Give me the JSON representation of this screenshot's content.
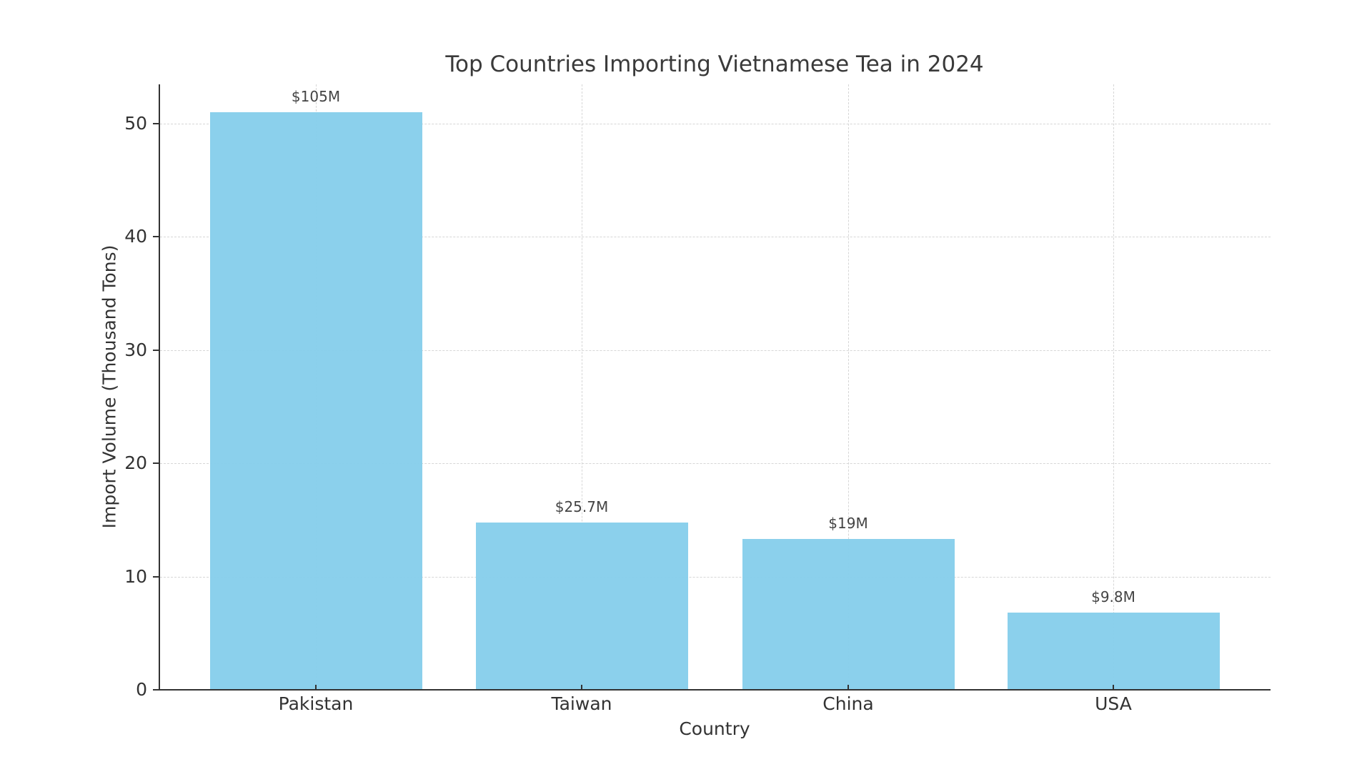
{
  "chart_data": {
    "type": "bar",
    "title": "Top Countries Importing Vietnamese Tea in 2024",
    "xlabel": "Country",
    "ylabel": "Import Volume (Thousand Tons)",
    "categories": [
      "Pakistan",
      "Taiwan",
      "China",
      "USA"
    ],
    "values": [
      51,
      14.8,
      13.3,
      6.8
    ],
    "bar_labels": [
      "$105M",
      "$25.7M",
      "$19M",
      "$9.8M"
    ],
    "ylim": [
      0,
      53.5
    ],
    "yticks": [
      0,
      10,
      20,
      30,
      40,
      50
    ],
    "grid": true,
    "legend": null,
    "bar_color": "#87ceeb"
  }
}
